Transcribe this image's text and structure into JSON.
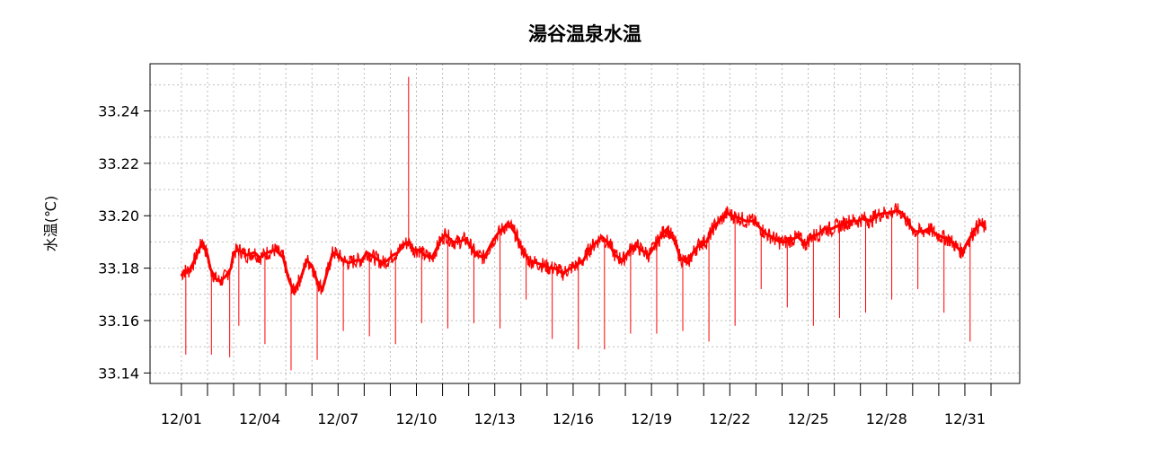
{
  "chart_data": {
    "type": "line",
    "title": "湯谷温泉水温",
    "xlabel": "",
    "ylabel": "水温(℃)",
    "ylim": [
      33.136,
      33.258
    ],
    "xlim_days": [
      -1.2,
      32.1
    ],
    "y_ticks": [
      33.14,
      33.16,
      33.18,
      33.2,
      33.22,
      33.24
    ],
    "y_tick_labels": [
      "33.14",
      "33.16",
      "33.18",
      "33.20",
      "33.22",
      "33.24"
    ],
    "x_label_ticks": [
      {
        "day": 0,
        "label": "12/01"
      },
      {
        "day": 3,
        "label": "12/04"
      },
      {
        "day": 6,
        "label": "12/07"
      },
      {
        "day": 9,
        "label": "12/10"
      },
      {
        "day": 12,
        "label": "12/13"
      },
      {
        "day": 15,
        "label": "12/16"
      },
      {
        "day": 18,
        "label": "12/19"
      },
      {
        "day": 21,
        "label": "12/22"
      },
      {
        "day": 24,
        "label": "12/25"
      },
      {
        "day": 27,
        "label": "12/28"
      },
      {
        "day": 30,
        "label": "12/31"
      }
    ],
    "grid": true,
    "series": [
      {
        "color": "#ff0000",
        "x": [
          0.0,
          0.1,
          0.3,
          0.5,
          0.8,
          1.0,
          1.1,
          1.3,
          1.5,
          1.7,
          1.9,
          2.0,
          2.2,
          2.5,
          2.8,
          3.0,
          3.3,
          3.6,
          3.9,
          4.1,
          4.3,
          4.6,
          4.8,
          5.0,
          5.2,
          5.4,
          5.6,
          5.8,
          6.0,
          6.2,
          6.4,
          6.7,
          6.9,
          7.1,
          7.4,
          7.7,
          7.9,
          8.1,
          8.3,
          8.5,
          8.7,
          8.9,
          9.1,
          9.3,
          9.6,
          9.9,
          10.1,
          10.4,
          10.6,
          10.9,
          11.1,
          11.3,
          11.6,
          11.9,
          12.1,
          12.4,
          12.6,
          12.8,
          13.0,
          13.3,
          13.6,
          13.9,
          14.1,
          14.3,
          14.6,
          14.9,
          15.1,
          15.4,
          15.6,
          15.9,
          16.1,
          16.4,
          16.6,
          16.9,
          17.1,
          17.4,
          17.6,
          17.9,
          18.1,
          18.4,
          18.6,
          18.9,
          19.1,
          19.4,
          19.6,
          19.9,
          20.1,
          20.4,
          20.6,
          20.9,
          21.1,
          21.4,
          21.6,
          21.9,
          22.1,
          22.4,
          22.6,
          22.9,
          23.1,
          23.4,
          23.6,
          23.9,
          24.1,
          24.4,
          24.6,
          24.9,
          25.1,
          25.4,
          25.6,
          25.9,
          26.1,
          26.4,
          26.6,
          26.9,
          27.1,
          27.4,
          27.6,
          27.9,
          28.1,
          28.4,
          28.6,
          28.9,
          29.1,
          29.4,
          29.6,
          29.9,
          30.1,
          30.4,
          30.6,
          30.8
        ],
        "y": [
          33.177,
          33.179,
          33.179,
          33.183,
          33.19,
          33.185,
          33.18,
          33.176,
          33.175,
          33.177,
          33.18,
          33.186,
          33.187,
          33.185,
          33.186,
          33.184,
          33.186,
          33.187,
          33.184,
          33.176,
          33.171,
          33.177,
          33.183,
          33.181,
          33.175,
          33.172,
          33.179,
          33.186,
          33.185,
          33.183,
          33.182,
          33.183,
          33.183,
          33.186,
          33.184,
          33.182,
          33.183,
          33.185,
          33.186,
          33.189,
          33.19,
          33.187,
          33.187,
          33.185,
          33.184,
          33.19,
          33.193,
          33.19,
          33.19,
          33.191,
          33.188,
          33.185,
          33.184,
          33.19,
          33.193,
          33.196,
          33.196,
          33.193,
          33.188,
          33.183,
          33.182,
          33.181,
          33.18,
          33.18,
          33.178,
          33.18,
          33.181,
          33.183,
          33.187,
          33.19,
          33.192,
          33.189,
          33.185,
          33.183,
          33.186,
          33.189,
          33.187,
          33.185,
          33.188,
          33.193,
          33.195,
          33.19,
          33.184,
          33.182,
          33.186,
          33.19,
          33.19,
          33.196,
          33.198,
          33.201,
          33.2,
          33.199,
          33.198,
          33.198,
          33.196,
          33.193,
          33.192,
          33.19,
          33.19,
          33.191,
          33.192,
          33.189,
          33.192,
          33.193,
          33.195,
          33.195,
          33.196,
          33.197,
          33.198,
          33.198,
          33.199,
          33.198,
          33.2,
          33.201,
          33.201,
          33.202,
          33.201,
          33.196,
          33.194,
          33.194,
          33.195,
          33.193,
          33.192,
          33.191,
          33.189,
          33.186,
          33.19,
          33.195,
          33.197,
          33.195
        ]
      }
    ],
    "spikes": [
      {
        "day": 0.17,
        "min": 33.147
      },
      {
        "day": 1.15,
        "min": 33.147
      },
      {
        "day": 1.85,
        "min": 33.146
      },
      {
        "day": 2.2,
        "min": 33.158
      },
      {
        "day": 3.2,
        "min": 33.151
      },
      {
        "day": 4.2,
        "min": 33.141
      },
      {
        "day": 5.2,
        "min": 33.145
      },
      {
        "day": 6.2,
        "min": 33.156
      },
      {
        "day": 7.2,
        "min": 33.154
      },
      {
        "day": 8.2,
        "min": 33.151
      },
      {
        "day": 9.2,
        "min": 33.159
      },
      {
        "day": 10.2,
        "min": 33.157
      },
      {
        "day": 11.2,
        "min": 33.159
      },
      {
        "day": 12.2,
        "min": 33.157
      },
      {
        "day": 13.2,
        "min": 33.168
      },
      {
        "day": 14.2,
        "min": 33.153
      },
      {
        "day": 15.2,
        "min": 33.149
      },
      {
        "day": 16.2,
        "min": 33.149
      },
      {
        "day": 17.2,
        "min": 33.155
      },
      {
        "day": 18.2,
        "min": 33.155
      },
      {
        "day": 19.2,
        "min": 33.156
      },
      {
        "day": 20.2,
        "min": 33.152
      },
      {
        "day": 21.2,
        "min": 33.158
      },
      {
        "day": 22.2,
        "min": 33.172
      },
      {
        "day": 23.2,
        "min": 33.165
      },
      {
        "day": 24.2,
        "min": 33.158
      },
      {
        "day": 25.2,
        "min": 33.161
      },
      {
        "day": 26.2,
        "min": 33.163
      },
      {
        "day": 27.2,
        "min": 33.168
      },
      {
        "day": 28.2,
        "min": 33.172
      },
      {
        "day": 29.2,
        "min": 33.163
      },
      {
        "day": 30.2,
        "min": 33.152
      }
    ],
    "upward_spikes": [
      {
        "day": 8.7,
        "max": 33.253
      }
    ]
  }
}
